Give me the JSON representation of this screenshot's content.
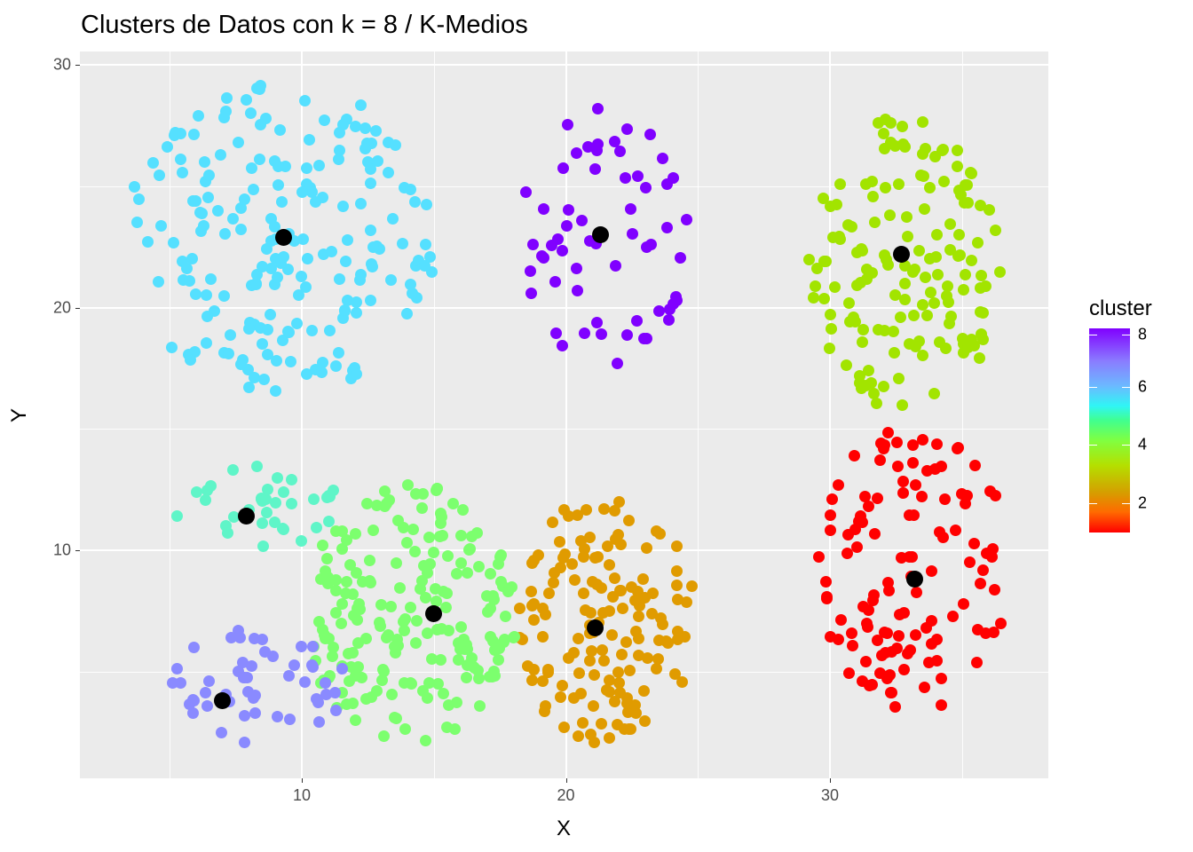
{
  "title": "Clusters de Datos con k = 8 / K-Medios",
  "chart_data": {
    "type": "scatter",
    "title": "Clusters de Datos con k = 8 / K-Medios",
    "xlabel": "X",
    "ylabel": "Y",
    "xlim": [
      1.7,
      38.3
    ],
    "ylim": [
      1.1,
      31.0
    ],
    "x_ticks": [
      10,
      20,
      30
    ],
    "y_ticks": [
      10,
      20,
      30
    ],
    "grid": true,
    "legend": {
      "title": "cluster",
      "type": "continuous-colorbar",
      "position": "right",
      "ticks": [
        2,
        4,
        6,
        8
      ],
      "range": [
        1,
        8
      ],
      "colors": [
        "#ff0000",
        "#e09b00",
        "#a2e400",
        "#7cff6e",
        "#5ff5c8",
        "#55e0ff",
        "#8a8aff",
        "#8000ff"
      ]
    },
    "centers": [
      {
        "cluster": 1,
        "x": 33.2,
        "y": 8.8
      },
      {
        "cluster": 2,
        "x": 21.1,
        "y": 6.8
      },
      {
        "cluster": 3,
        "x": 32.7,
        "y": 22.2
      },
      {
        "cluster": 4,
        "x": 15.0,
        "y": 7.4
      },
      {
        "cluster": 5,
        "x": 7.9,
        "y": 11.4
      },
      {
        "cluster": 6,
        "x": 9.3,
        "y": 22.9
      },
      {
        "cluster": 7,
        "x": 7.0,
        "y": 3.8
      },
      {
        "cluster": 8,
        "x": 21.3,
        "y": 23.0
      }
    ],
    "clusters": [
      {
        "cluster": 1,
        "color": "#ff0000",
        "approx_n": 120,
        "x_range": [
          29.5,
          36.9
        ],
        "y_range": [
          3.4,
          15.2
        ]
      },
      {
        "cluster": 2,
        "color": "#e09b00",
        "approx_n": 145,
        "x_range": [
          18.1,
          24.9
        ],
        "y_range": [
          1.9,
          12.3
        ]
      },
      {
        "cluster": 3,
        "color": "#a2e400",
        "approx_n": 150,
        "x_range": [
          29.2,
          36.5
        ],
        "y_range": [
          15.6,
          28.2
        ]
      },
      {
        "cluster": 4,
        "color": "#7cff6e",
        "approx_n": 200,
        "x_range": [
          10.0,
          18.2
        ],
        "y_range": [
          2.0,
          12.8
        ]
      },
      {
        "cluster": 5,
        "color": "#5ff5c8",
        "approx_n": 35,
        "x_range": [
          5.0,
          11.5
        ],
        "y_range": [
          10.1,
          13.6
        ]
      },
      {
        "cluster": 6,
        "color": "#55e0ff",
        "approx_n": 200,
        "x_range": [
          3.2,
          15.3
        ],
        "y_range": [
          16.4,
          29.2
        ]
      },
      {
        "cluster": 7,
        "color": "#8a8aff",
        "approx_n": 50,
        "x_range": [
          4.9,
          11.7
        ],
        "y_range": [
          2.0,
          6.8
        ]
      },
      {
        "cluster": 8,
        "color": "#8000ff",
        "approx_n": 60,
        "x_range": [
          18.3,
          24.8
        ],
        "y_range": [
          17.1,
          28.6
        ]
      }
    ]
  }
}
